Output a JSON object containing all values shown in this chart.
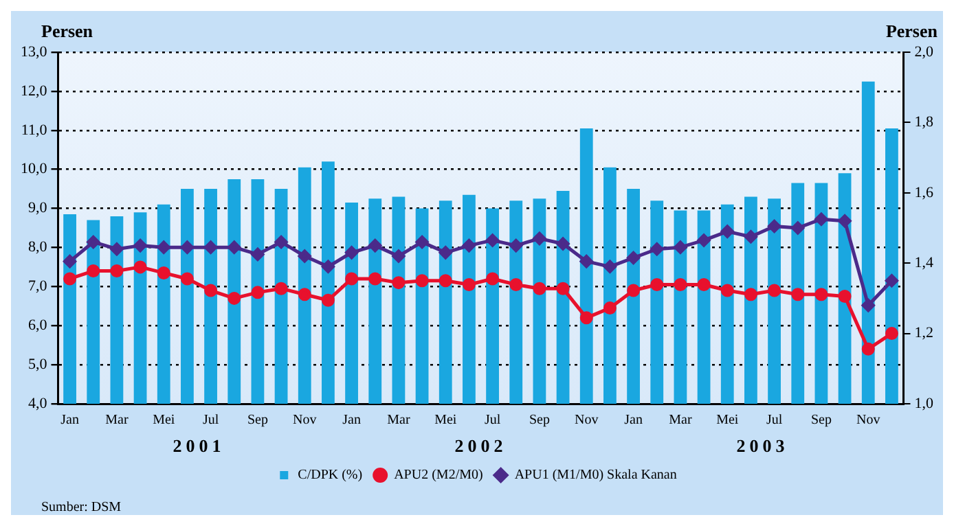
{
  "chart_data": {
    "type": "bar",
    "ylabel": "Persen",
    "y2label": "Persen",
    "categories": [
      "Jan",
      null,
      "Mar",
      null,
      "Mei",
      null,
      "Jul",
      null,
      "Sep",
      null,
      "Nov",
      null,
      "Jan",
      null,
      "Mar",
      null,
      "Mei",
      null,
      "Jul",
      null,
      "Sep",
      null,
      "Nov",
      null,
      "Jan",
      null,
      "Mar",
      null,
      "Mei",
      null,
      "Jul",
      null,
      "Sep",
      null,
      "Nov",
      null
    ],
    "series": [
      {
        "name": "C/DPK (%)",
        "color": "#1aa7e0",
        "values": [
          8.85,
          8.7,
          8.8,
          8.9,
          9.1,
          9.5,
          9.5,
          9.75,
          9.75,
          9.5,
          10.05,
          10.2,
          9.15,
          9.25,
          9.3,
          9.0,
          9.2,
          9.35,
          9.0,
          9.2,
          9.25,
          9.45,
          11.05,
          10.05,
          9.5,
          9.2,
          8.95,
          8.95,
          9.1,
          9.3,
          9.25,
          9.65,
          9.65,
          9.9,
          12.25,
          11.05
        ]
      },
      {
        "name": "APU2 (M2/M0)",
        "type": "line",
        "marker": "circle",
        "color": "#e8112d",
        "values": [
          7.2,
          7.4,
          7.4,
          7.5,
          7.35,
          7.2,
          6.9,
          6.7,
          6.85,
          6.95,
          6.8,
          6.65,
          7.2,
          7.2,
          7.1,
          7.15,
          7.15,
          7.05,
          7.2,
          7.05,
          6.95,
          6.95,
          6.2,
          6.45,
          6.9,
          7.05,
          7.05,
          7.05,
          6.9,
          6.8,
          6.9,
          6.8,
          6.8,
          6.75,
          5.4,
          5.8
        ]
      },
      {
        "name": "APU1 (M1/M0) Skala Kanan",
        "type": "line",
        "marker": "diamond",
        "axis": "y2",
        "color": "#4b2a8a",
        "values": [
          1.405,
          1.46,
          1.44,
          1.45,
          1.445,
          1.445,
          1.445,
          1.445,
          1.425,
          1.46,
          1.42,
          1.39,
          1.43,
          1.45,
          1.42,
          1.46,
          1.43,
          1.45,
          1.465,
          1.45,
          1.47,
          1.455,
          1.405,
          1.39,
          1.415,
          1.44,
          1.445,
          1.465,
          1.49,
          1.475,
          1.505,
          1.5,
          1.525,
          1.52,
          1.28,
          1.35
        ]
      }
    ],
    "ylim": [
      4,
      13
    ],
    "yticks": [
      {
        "value": 4,
        "label": "4,0"
      },
      {
        "value": 5,
        "label": "5,0"
      },
      {
        "value": 6,
        "label": "6,0"
      },
      {
        "value": 7,
        "label": "7,0"
      },
      {
        "value": 8,
        "label": "8,0"
      },
      {
        "value": 9,
        "label": "9,0"
      },
      {
        "value": 10,
        "label": "10,0"
      },
      {
        "value": 11,
        "label": "11,0"
      },
      {
        "value": 12,
        "label": "12,0"
      },
      {
        "value": 13,
        "label": "13,0"
      }
    ],
    "y2lim": [
      1,
      2
    ],
    "y2ticks": [
      {
        "value": 1,
        "label": "1,0"
      },
      {
        "value": 1.2,
        "label": "1,2"
      },
      {
        "value": 1.4,
        "label": "1,4"
      },
      {
        "value": 1.6,
        "label": "1,6"
      },
      {
        "value": 1.8,
        "label": "1,8"
      },
      {
        "value": 2,
        "label": "2,0"
      }
    ],
    "grid": "y",
    "line_style": "solid",
    "legend": "bottom",
    "annotations": [
      "2001",
      "2002",
      "2003",
      "Sumber: DSM"
    ]
  }
}
